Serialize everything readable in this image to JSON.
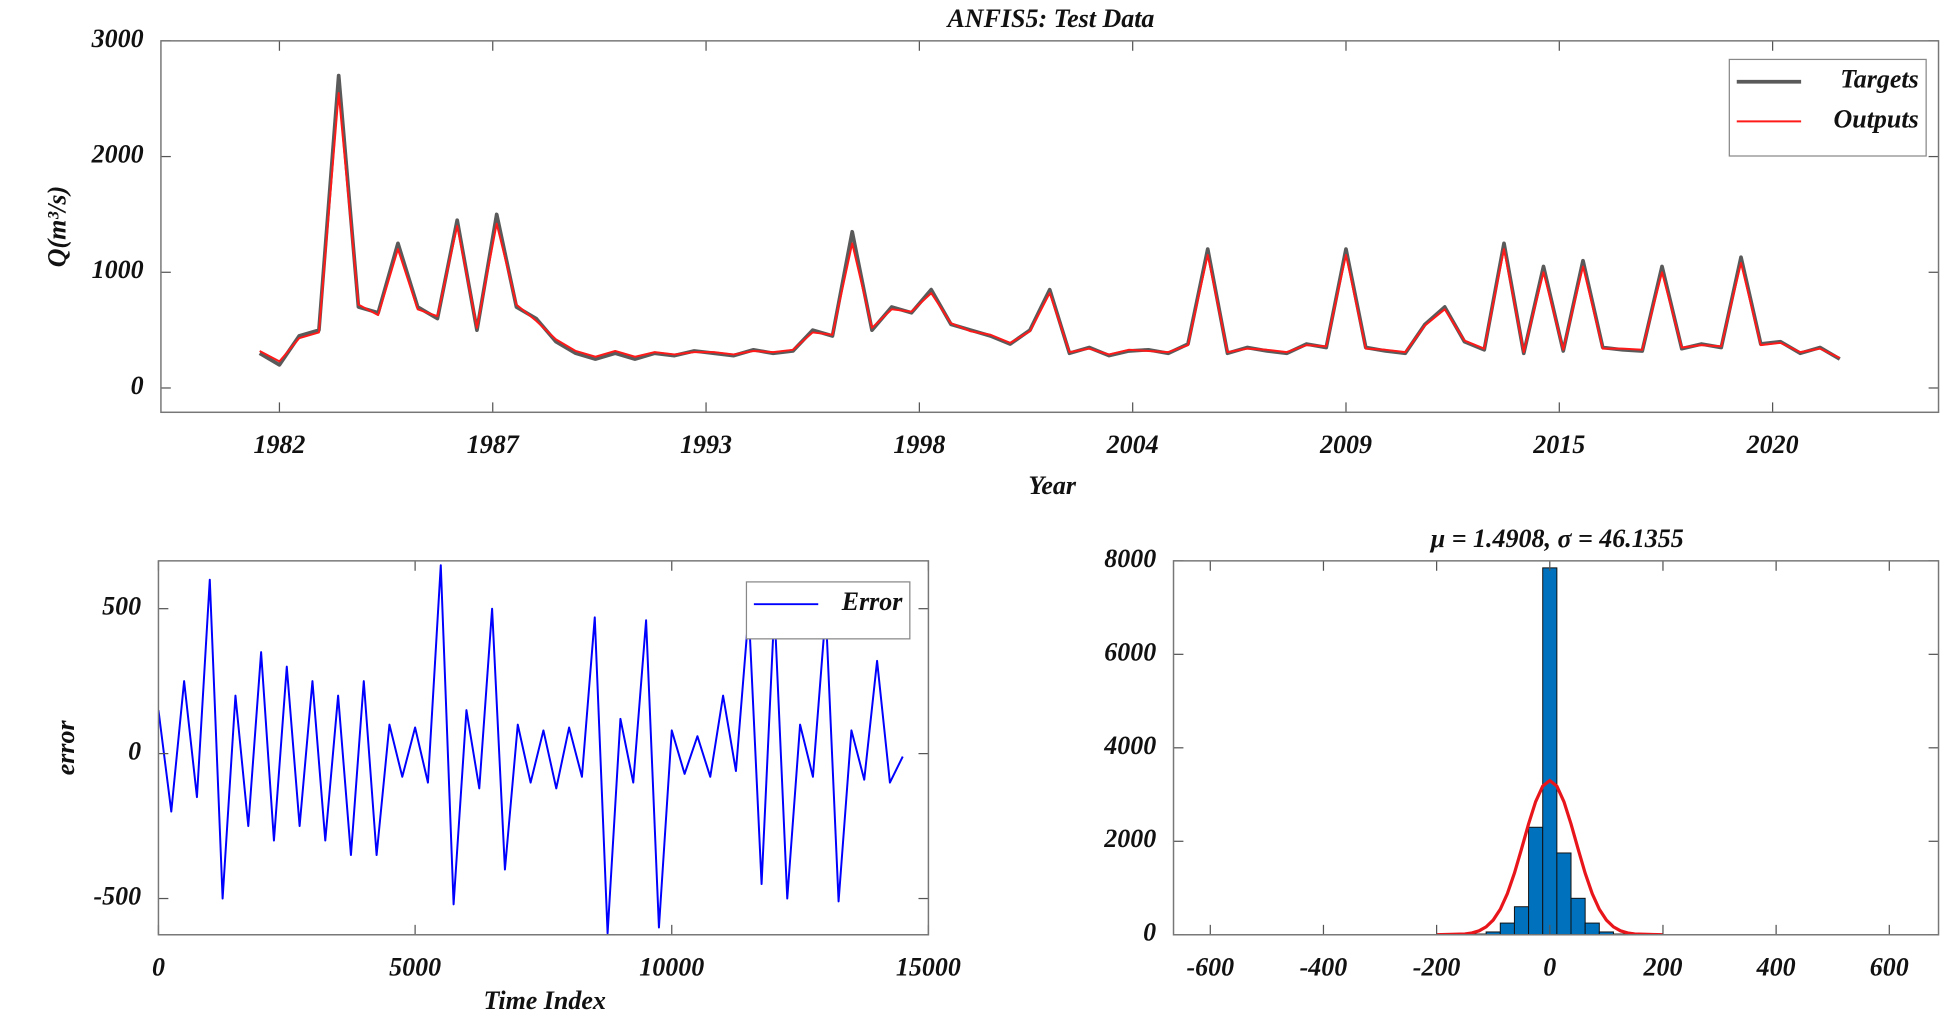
{
  "chart_data": [
    {
      "type": "line",
      "title": "ANFIS5: Test Data",
      "x_label": "Year",
      "y_label": "Q(m³/s)",
      "x": [
        1981.5,
        1982,
        1982.5,
        1983,
        1983.5,
        1984,
        1984.5,
        1985,
        1985.5,
        1986,
        1986.5,
        1987,
        1987.5,
        1988,
        1988.5,
        1989,
        1989.5,
        1990,
        1990.5,
        1991,
        1991.5,
        1992,
        1992.5,
        1993,
        1993.5,
        1994,
        1994.5,
        1995,
        1995.5,
        1996,
        1996.5,
        1997,
        1997.5,
        1998,
        1998.5,
        1999,
        1999.5,
        2000,
        2000.5,
        2001,
        2001.5,
        2002,
        2002.5,
        2003,
        2003.5,
        2004,
        2004.5,
        2005,
        2005.5,
        2006,
        2006.5,
        2007,
        2007.5,
        2008,
        2008.5,
        2009,
        2009.5,
        2010,
        2010.5,
        2011,
        2011.5,
        2012,
        2012.5,
        2013,
        2013.5,
        2014,
        2014.5,
        2015,
        2015.5,
        2016,
        2016.5,
        2017,
        2017.5,
        2018,
        2018.5,
        2019,
        2019.5,
        2020,
        2020.5,
        2021,
        2021.5
      ],
      "series": [
        {
          "name": "Targets",
          "color": "#5a5a5a",
          "values": [
            300,
            200,
            450,
            500,
            2700,
            700,
            650,
            1250,
            700,
            600,
            1450,
            500,
            1500,
            700,
            600,
            400,
            300,
            250,
            300,
            250,
            300,
            280,
            320,
            300,
            280,
            330,
            300,
            320,
            500,
            450,
            1350,
            500,
            700,
            650,
            850,
            550,
            500,
            450,
            380,
            500,
            850,
            300,
            350,
            280,
            320,
            330,
            300,
            380,
            1200,
            300,
            350,
            320,
            300,
            380,
            350,
            1200,
            350,
            320,
            300,
            550,
            700,
            400,
            330,
            1250,
            300,
            1050,
            320,
            1100,
            350,
            330,
            320,
            1050,
            340,
            380,
            350,
            1130,
            380,
            400,
            300,
            350,
            250
          ]
        },
        {
          "name": "Outputs",
          "color": "#ff1a1a",
          "values": [
            320,
            230,
            430,
            480,
            2550,
            720,
            630,
            1200,
            680,
            620,
            1400,
            520,
            1420,
            720,
            580,
            420,
            320,
            270,
            320,
            270,
            310,
            290,
            310,
            310,
            290,
            320,
            310,
            330,
            480,
            460,
            1250,
            520,
            680,
            660,
            820,
            560,
            490,
            460,
            390,
            490,
            820,
            310,
            340,
            290,
            330,
            320,
            310,
            370,
            1150,
            310,
            340,
            330,
            310,
            370,
            360,
            1150,
            340,
            330,
            310,
            540,
            680,
            410,
            340,
            1200,
            310,
            1000,
            330,
            1050,
            340,
            340,
            330,
            1000,
            350,
            370,
            360,
            1080,
            370,
            390,
            310,
            340,
            260
          ]
        }
      ],
      "xlim": [
        1979,
        2024
      ],
      "ylim": [
        -210,
        3000
      ],
      "xticks": [
        {
          "value": 1982,
          "label": "1982"
        },
        {
          "value": 1987.4,
          "label": "1987"
        },
        {
          "value": 1992.8,
          "label": "1993"
        },
        {
          "value": 1998.2,
          "label": "1998"
        },
        {
          "value": 2003.6,
          "label": "2004"
        },
        {
          "value": 2009,
          "label": "2009"
        },
        {
          "value": 2014.4,
          "label": "2015"
        },
        {
          "value": 2019.8,
          "label": "2020"
        }
      ],
      "yticks": [
        0,
        1000,
        2000,
        3000
      ],
      "legend": "northeast",
      "grid": false
    },
    {
      "type": "line",
      "x_label": "Time Index",
      "y_label": "error",
      "x": [
        0,
        250,
        500,
        750,
        1000,
        1250,
        1500,
        1750,
        2000,
        2250,
        2500,
        2750,
        3000,
        3250,
        3500,
        3750,
        4000,
        4250,
        4500,
        4750,
        5000,
        5250,
        5500,
        5750,
        6000,
        6250,
        6500,
        6750,
        7000,
        7250,
        7500,
        7750,
        8000,
        8250,
        8500,
        8750,
        9000,
        9250,
        9500,
        9750,
        10000,
        10250,
        10500,
        10750,
        11000,
        11250,
        11500,
        11750,
        12000,
        12250,
        12500,
        12750,
        13000,
        13250,
        13500,
        13750,
        14000,
        14250,
        14500
      ],
      "series": [
        {
          "name": "Error",
          "color": "#0000ff",
          "values": [
            150,
            -200,
            250,
            -150,
            600,
            -500,
            200,
            -250,
            350,
            -300,
            300,
            -250,
            250,
            -300,
            200,
            -350,
            250,
            -350,
            100,
            -80,
            90,
            -100,
            650,
            -520,
            150,
            -120,
            500,
            -400,
            100,
            -100,
            80,
            -120,
            90,
            -80,
            470,
            -620,
            120,
            -100,
            460,
            -600,
            80,
            -70,
            60,
            -80,
            200,
            -60,
            490,
            -450,
            500,
            -500,
            100,
            -80,
            490,
            -510,
            80,
            -90,
            320,
            -100,
            -10
          ]
        }
      ],
      "xlim": [
        0,
        15000
      ],
      "ylim": [
        -625,
        665
      ],
      "xticks": [
        0,
        5000,
        10000,
        15000
      ],
      "yticks": [
        -500,
        0,
        500
      ],
      "legend": "northeast",
      "grid": false
    },
    {
      "type": "histogram",
      "title": "μ = 1.4908, σ = 46.1355",
      "bins": [
        -162.5,
        -137.5,
        -112.5,
        -87.5,
        -62.5,
        -37.5,
        -12.5,
        12.5,
        37.5,
        62.5,
        87.5,
        112.5,
        137.5
      ],
      "values": [
        5,
        15,
        60,
        250,
        600,
        2300,
        7850,
        1750,
        780,
        250,
        60,
        15
      ],
      "color": "#0072bd",
      "fit_x": [
        -200,
        -150,
        -137.5,
        -125,
        -112.5,
        -100,
        -87.5,
        -75,
        -62.5,
        -50,
        -37.5,
        -25,
        -12.5,
        0,
        12.5,
        25,
        37.5,
        50,
        62.5,
        75,
        87.5,
        100,
        112.5,
        125,
        137.5,
        150,
        200
      ],
      "fit_values": [
        0,
        17,
        39,
        84,
        169,
        315,
        546,
        880,
        1318,
        1835,
        2372,
        2848,
        3181,
        3300,
        3181,
        2848,
        2372,
        1835,
        1318,
        880,
        546,
        315,
        169,
        84,
        39,
        17,
        0
      ],
      "fit_color": "#e8161b",
      "xlim": [
        -665,
        687
      ],
      "ylim": [
        0,
        8000
      ],
      "xticks": [
        -600,
        -400,
        -200,
        0,
        200,
        400,
        600
      ],
      "yticks": [
        0,
        2000,
        4000,
        6000,
        8000
      ],
      "grid": false
    }
  ]
}
